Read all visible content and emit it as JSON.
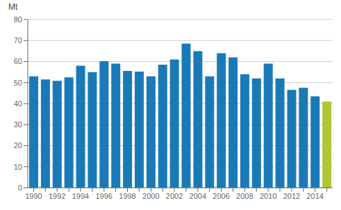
{
  "chart_data": {
    "type": "bar",
    "ylabel": "Mt",
    "categories": [
      "1990",
      null,
      "1992",
      null,
      "1994",
      null,
      "1996",
      null,
      "1998",
      null,
      "2000",
      null,
      "2002",
      null,
      "2004",
      null,
      "2006",
      null,
      "2008",
      null,
      "2010",
      null,
      "2012",
      null,
      "2014",
      null
    ],
    "values": [
      53.0,
      51.5,
      50.8,
      52.5,
      58.0,
      55.0,
      60.2,
      59.0,
      55.5,
      55.2,
      53.0,
      58.5,
      61.0,
      68.5,
      65.0,
      53.0,
      64.0,
      62.0,
      54.0,
      52.0,
      59.0,
      52.0,
      46.5,
      47.5,
      43.5,
      41.0
    ],
    "colors": [
      "#1a7ab8",
      "#1a7ab8",
      "#1a7ab8",
      "#1a7ab8",
      "#1a7ab8",
      "#1a7ab8",
      "#1a7ab8",
      "#1a7ab8",
      "#1a7ab8",
      "#1a7ab8",
      "#1a7ab8",
      "#1a7ab8",
      "#1a7ab8",
      "#1a7ab8",
      "#1a7ab8",
      "#1a7ab8",
      "#1a7ab8",
      "#1a7ab8",
      "#1a7ab8",
      "#1a7ab8",
      "#1a7ab8",
      "#1a7ab8",
      "#1a7ab8",
      "#1a7ab8",
      "#1a7ab8",
      "#adc832"
    ],
    "ylim": [
      0,
      80
    ],
    "yticks": [
      0,
      10,
      20,
      30,
      40,
      50,
      60,
      70,
      80
    ],
    "grid": true
  }
}
